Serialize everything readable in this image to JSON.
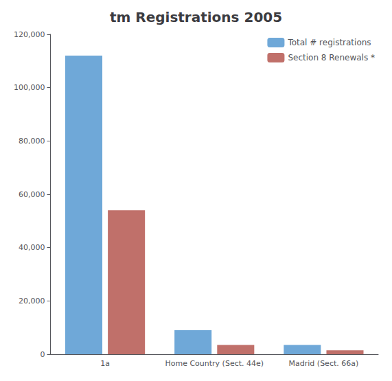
{
  "chart_data": {
    "type": "bar",
    "title": "tm Registrations 2005",
    "categories": [
      "1a",
      "Home Country (Sect. 44e)",
      "Madrid (Sect. 66a)"
    ],
    "series": [
      {
        "name": "Total # registrations",
        "color": "#6fa8d8",
        "values": [
          112000,
          9000,
          3500
        ]
      },
      {
        "name": "Section 8 Renewals *",
        "color": "#c0706a",
        "values": [
          54000,
          3500,
          1500
        ]
      }
    ],
    "ylim": [
      0,
      120000
    ],
    "yticks": [
      0,
      {
        "value": 20000,
        "label": "20,000"
      },
      {
        "value": 40000,
        "label": "40,000"
      },
      {
        "value": 60000,
        "label": "60,000"
      },
      {
        "value": 80000,
        "label": "80,000"
      },
      {
        "value": 100000,
        "label": "100,000"
      },
      {
        "value": 120000,
        "label": "120,000"
      }
    ],
    "grid": false,
    "legend": "upper right"
  }
}
